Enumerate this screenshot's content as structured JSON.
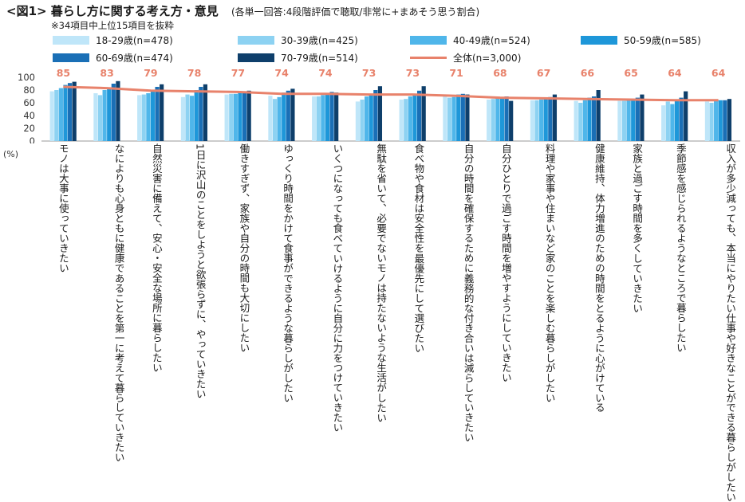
{
  "header": {
    "title": "<図1> 暮らし方に関する考え方・意見",
    "subtitle": "(各単一回答:4段階評価で聴取/非常に+まあそう思う割合)",
    "note": "※34項目中上位15項目を抜粋"
  },
  "colors": {
    "s18": "#bfe6f9",
    "s30": "#8dd2f2",
    "s40": "#4fb6ea",
    "s50": "#1e97d9",
    "s60": "#1a6fb6",
    "s70": "#0e3f6b",
    "total": "#e8826b"
  },
  "chart_data": {
    "type": "bar",
    "ylim": [
      0,
      100
    ],
    "yticks": [
      "0",
      "20",
      "40",
      "60",
      "80",
      "100"
    ],
    "y_unit": "(%)",
    "grid": false,
    "legend_position": "top",
    "categories": [
      [
        "モノは大事に使っていきたい"
      ],
      [
        "なによりも心身ともに健康で",
        "あることを第一に考えて暮ら",
        "していきたい"
      ],
      [
        "自然災害に備えて、安心・",
        "安全な場所に暮らしたい"
      ],
      [
        "1日に沢山のことをしようと",
        "欲張らずに、やっていきたい"
      ],
      [
        "働きすぎず、家族や自分の",
        "時間も大切にしたい"
      ],
      [
        "ゆっくり時間をかけて食事が",
        "できるような暮らしがしたい"
      ],
      [
        "いくつになっても食べて",
        "いけるように自分に力を",
        "つけていきたい"
      ],
      [
        "無駄を省いて、必要でない",
        "モノは持たないような生活が",
        "したい"
      ],
      [
        "食べ物や食材は安全性を",
        "最優先にして選びたい"
      ],
      [
        "自分の時間を確保するために",
        "義務的な付き合いは減らして",
        "いきたい"
      ],
      [
        "自分ひとりで過ごす時間を",
        "増やすようにしていきたい"
      ],
      [
        "料理や家事や住まいなど家の",
        "ことを楽しむ暮らしがしたい"
      ],
      [
        "健康維持、体力増進のための",
        "時間をとるように心がけてい",
        "る"
      ],
      [
        "家族と過ごす時間を多く",
        "していきたい"
      ],
      [
        "季節感を感じられるような",
        "ところで暮らしたい"
      ],
      [
        "収入が多少減っても、本当に",
        "やりたい仕事や好きなことが",
        "できる暮らしがしたい"
      ]
    ],
    "series": [
      {
        "name": "18-29歳(n=478)",
        "color_key": "s18",
        "values": [
          78,
          75,
          72,
          69,
          73,
          71,
          70,
          62,
          65,
          70,
          65,
          64,
          63,
          63,
          56,
          62
        ]
      },
      {
        "name": "30-39歳(n=425)",
        "color_key": "s30",
        "values": [
          80,
          72,
          73,
          73,
          74,
          66,
          70,
          65,
          66,
          68,
          66,
          64,
          60,
          63,
          62,
          60
        ]
      },
      {
        "name": "40-49歳(n=524)",
        "color_key": "s40",
        "values": [
          83,
          80,
          75,
          71,
          74,
          69,
          72,
          70,
          70,
          69,
          67,
          65,
          64,
          64,
          58,
          63
        ]
      },
      {
        "name": "50-59歳(n=585)",
        "color_key": "s50",
        "values": [
          88,
          83,
          80,
          80,
          78,
          76,
          75,
          72,
          73,
          73,
          69,
          67,
          68,
          66,
          63,
          64
        ]
      },
      {
        "name": "60-69歳(n=474)",
        "color_key": "s60",
        "values": [
          91,
          90,
          85,
          85,
          78,
          79,
          77,
          80,
          79,
          74,
          70,
          69,
          70,
          68,
          68,
          64
        ]
      },
      {
        "name": "70-79歳(n=514)",
        "color_key": "s70",
        "values": [
          93,
          94,
          89,
          89,
          79,
          82,
          76,
          86,
          86,
          73,
          63,
          73,
          80,
          73,
          78,
          66
        ]
      }
    ],
    "total": {
      "name": "全体(n=3,000)",
      "color_key": "total",
      "values": [
        85,
        83,
        79,
        78,
        77,
        74,
        74,
        73,
        73,
        71,
        68,
        67,
        66,
        65,
        64,
        64
      ]
    }
  }
}
